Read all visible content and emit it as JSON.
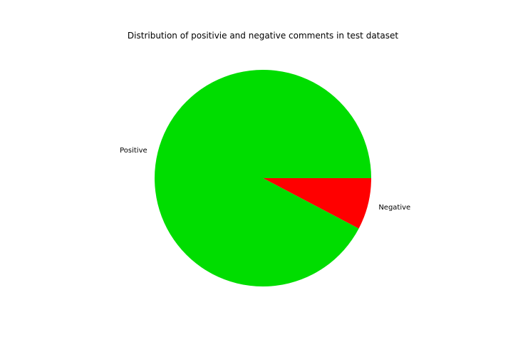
{
  "chart_data": {
    "type": "pie",
    "title": "Distribution of positivie and negative comments in test dataset",
    "slices": [
      {
        "label": "Negative",
        "value": 7.7,
        "color": "#ff0000"
      },
      {
        "label": "Positive",
        "value": 92.3,
        "color": "#00dd00"
      }
    ],
    "start_angle_deg": 0,
    "direction": "clockwise"
  }
}
